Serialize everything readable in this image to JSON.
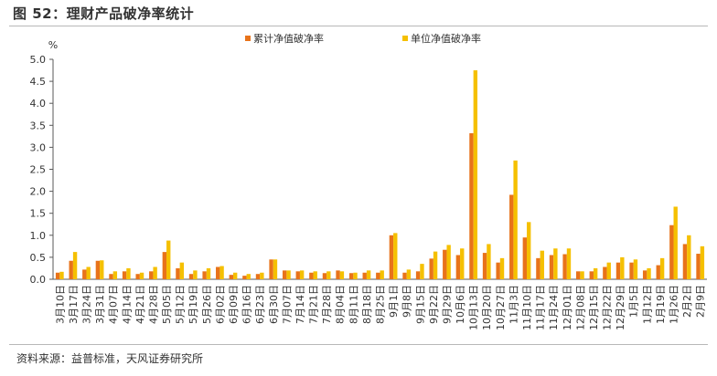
{
  "header": {
    "title": "图 52：理财产品破净率统计"
  },
  "footer": {
    "source": "资料来源：益普标准，天风证券研究所"
  },
  "colors": {
    "series1": "#e8731a",
    "series2": "#f5c000",
    "axis": "#595959"
  },
  "chart_data": {
    "type": "bar",
    "title": "",
    "ylabel": "%",
    "xlabel": "",
    "ylim": [
      0,
      5.0
    ],
    "yticks": [
      "0.0",
      "0.5",
      "1.0",
      "1.5",
      "2.0",
      "2.5",
      "3.0",
      "3.5",
      "4.0",
      "4.5",
      "5.0"
    ],
    "grid": false,
    "legend": "top",
    "categories": [
      "3月10日",
      "3月17日",
      "3月24日",
      "3月31日",
      "4月07日",
      "4月14日",
      "4月21日",
      "4月28日",
      "5月05日",
      "5月12日",
      "5月19日",
      "5月26日",
      "6月02日",
      "6月09日",
      "6月16日",
      "6月23日",
      "6月30日",
      "7月07日",
      "7月14日",
      "7月21日",
      "7月28日",
      "8月04日",
      "8月11日",
      "8月18日",
      "8月25日",
      "9月1日",
      "9月8日",
      "9月15日",
      "9月22日",
      "9月29日",
      "10月6日",
      "10月13日",
      "10月20日",
      "10月27日",
      "11月3日",
      "11月10日",
      "11月17日",
      "11月24日",
      "12月01日",
      "12月08日",
      "12月15日",
      "12月22日",
      "12月29日",
      "1月5日",
      "1月12日",
      "1月19日",
      "1月26日",
      "2月2日",
      "2月9日"
    ],
    "series": [
      {
        "name": "累计净值破净率",
        "values": [
          0.15,
          0.42,
          0.22,
          0.42,
          0.12,
          0.18,
          0.12,
          0.18,
          0.62,
          0.25,
          0.12,
          0.18,
          0.28,
          0.1,
          0.08,
          0.12,
          0.45,
          0.2,
          0.18,
          0.15,
          0.14,
          0.2,
          0.14,
          0.15,
          0.15,
          1.0,
          0.15,
          0.18,
          0.47,
          0.67,
          0.55,
          3.32,
          0.6,
          0.38,
          1.92,
          0.95,
          0.48,
          0.55,
          0.57,
          0.18,
          0.18,
          0.28,
          0.38,
          0.38,
          0.2,
          0.32,
          1.23,
          0.8,
          0.58
        ]
      },
      {
        "name": "单位净值破净率",
        "values": [
          0.17,
          0.62,
          0.28,
          0.43,
          0.18,
          0.25,
          0.15,
          0.28,
          0.88,
          0.38,
          0.2,
          0.25,
          0.3,
          0.15,
          0.12,
          0.15,
          0.45,
          0.2,
          0.2,
          0.18,
          0.18,
          0.18,
          0.15,
          0.2,
          0.2,
          1.05,
          0.22,
          0.35,
          0.63,
          0.78,
          0.7,
          4.75,
          0.8,
          0.48,
          2.7,
          1.3,
          0.65,
          0.7,
          0.7,
          0.18,
          0.25,
          0.38,
          0.5,
          0.45,
          0.25,
          0.48,
          1.65,
          1.0,
          0.75
        ]
      }
    ]
  }
}
